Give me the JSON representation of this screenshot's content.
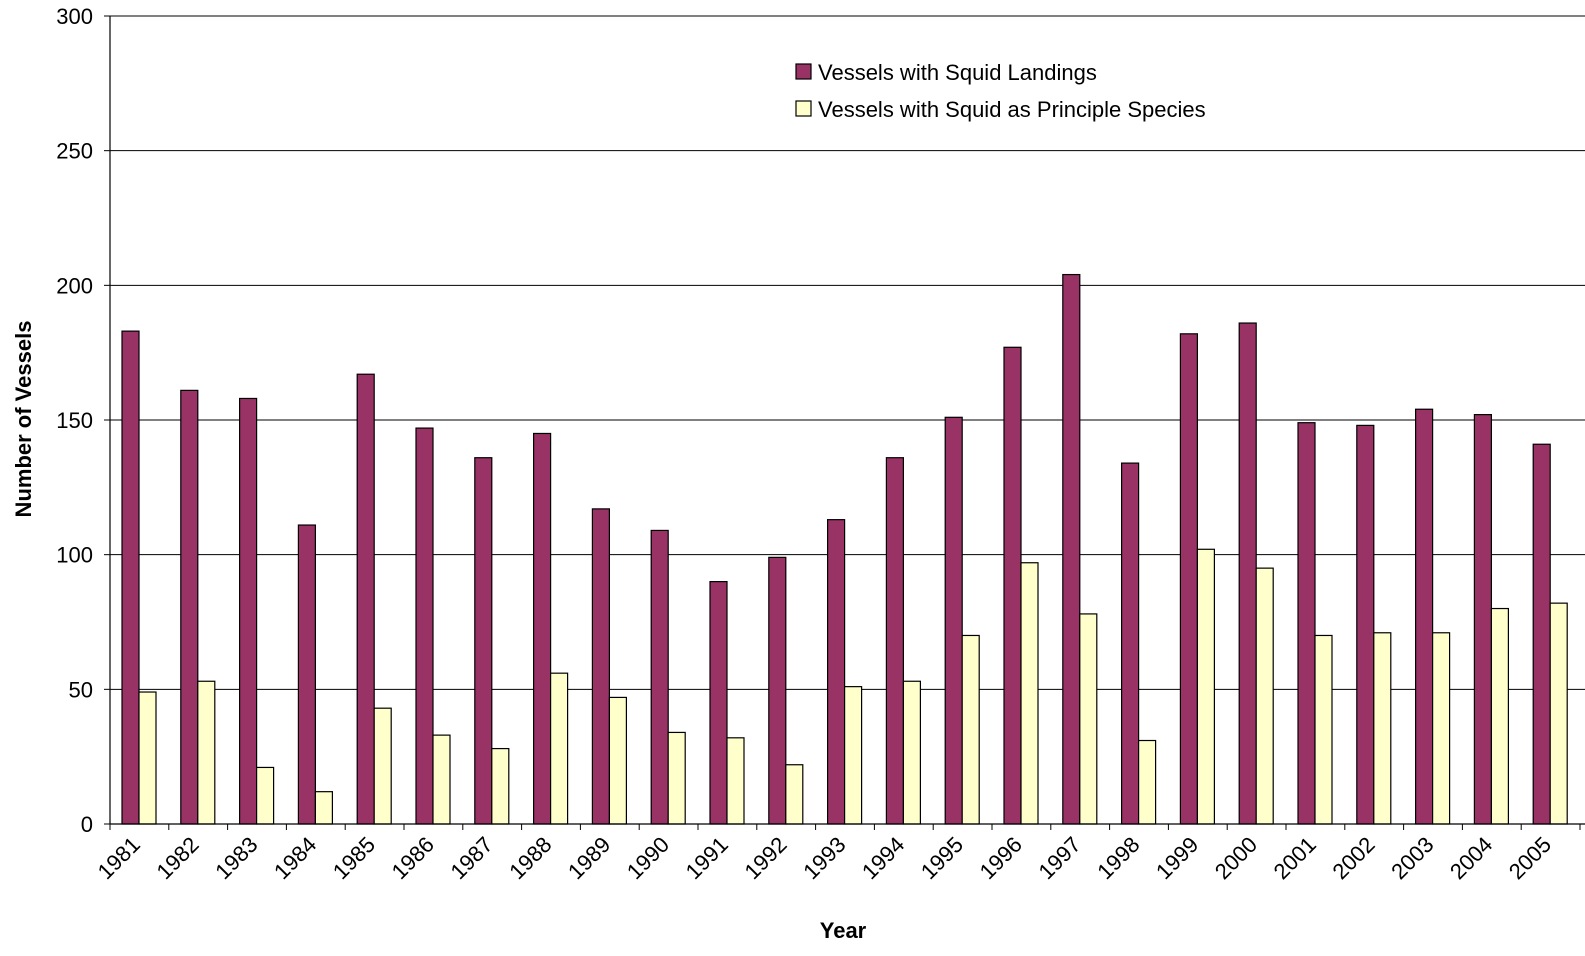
{
  "chart_data": {
    "type": "bar",
    "title": "",
    "xlabel": "Year",
    "ylabel": "Number of Vessels",
    "ylim": [
      0,
      300
    ],
    "yticks": [
      "0",
      "50",
      "100",
      "150",
      "200",
      "250",
      "300"
    ],
    "grid": true,
    "legend_position": "top-center",
    "categories": [
      "1981",
      "1982",
      "1983",
      "1984",
      "1985",
      "1986",
      "1987",
      "1988",
      "1989",
      "1990",
      "1991",
      "1992",
      "1993",
      "1994",
      "1995",
      "1996",
      "1997",
      "1998",
      "1999",
      "2000",
      "2001",
      "2002",
      "2003",
      "2004",
      "2005"
    ],
    "series": [
      {
        "name": "Vessels with Squid Landings",
        "color": "#993366",
        "values": [
          183,
          161,
          158,
          111,
          167,
          147,
          136,
          145,
          117,
          109,
          90,
          99,
          113,
          136,
          151,
          177,
          204,
          134,
          182,
          186,
          149,
          148,
          154,
          152,
          141
        ]
      },
      {
        "name": "Vessels with Squid as Principle Species",
        "color": "#FFFFCC",
        "values": [
          49,
          53,
          21,
          12,
          43,
          33,
          28,
          56,
          47,
          34,
          32,
          22,
          51,
          53,
          70,
          97,
          78,
          31,
          102,
          95,
          70,
          71,
          71,
          80,
          82
        ]
      }
    ]
  }
}
